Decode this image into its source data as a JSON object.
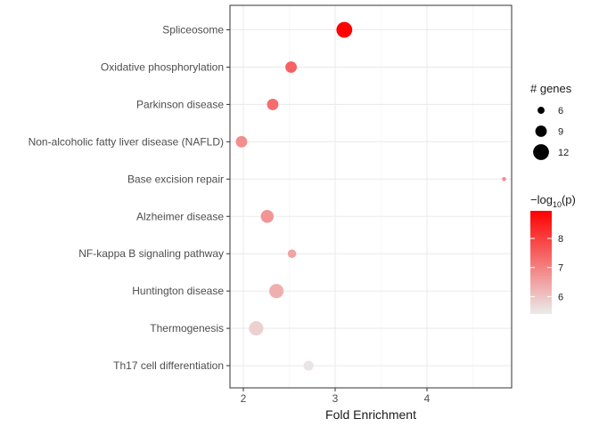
{
  "chart_data": {
    "type": "scatter",
    "title": "",
    "xlabel": "Fold Enrichment",
    "ylabel": "",
    "xlim": [
      1.9,
      4.95
    ],
    "x_ticks": [
      "2",
      "3",
      "4"
    ],
    "x_tick_values": [
      2,
      3,
      4
    ],
    "grid": true,
    "categories": [
      "Spliceosome",
      "Oxidative phosphorylation",
      "Parkinson disease",
      "Non-alcoholic fatty liver disease (NAFLD)",
      "Base excision repair",
      "Alzheimer disease",
      "NF-kappa B signaling pathway",
      "Huntington disease",
      "Thermogenesis",
      "Th17 cell differentiation"
    ],
    "points": [
      {
        "term": "Spliceosome",
        "fold_enrichment": 3.1,
        "genes": 12,
        "neg_log10_p": 8.9
      },
      {
        "term": "Oxidative phosphorylation",
        "fold_enrichment": 2.52,
        "genes": 9,
        "neg_log10_p": 7.5
      },
      {
        "term": "Parkinson disease",
        "fold_enrichment": 2.32,
        "genes": 9,
        "neg_log10_p": 7.3
      },
      {
        "term": "Non-alcoholic fatty liver disease (NAFLD)",
        "fold_enrichment": 1.98,
        "genes": 9,
        "neg_log10_p": 6.8
      },
      {
        "term": "Base excision repair",
        "fold_enrichment": 4.84,
        "genes": 4,
        "neg_log10_p": 6.8
      },
      {
        "term": "Alzheimer disease",
        "fold_enrichment": 2.26,
        "genes": 10,
        "neg_log10_p": 6.7
      },
      {
        "term": "NF-kappa B signaling pathway",
        "fold_enrichment": 2.53,
        "genes": 7,
        "neg_log10_p": 6.5
      },
      {
        "term": "Huntington disease",
        "fold_enrichment": 2.36,
        "genes": 11,
        "neg_log10_p": 6.3
      },
      {
        "term": "Thermogenesis",
        "fold_enrichment": 2.14,
        "genes": 11,
        "neg_log10_p": 5.8
      },
      {
        "term": "Th17 cell differentiation",
        "fold_enrichment": 2.71,
        "genes": 8,
        "neg_log10_p": 5.5
      }
    ],
    "size_legend": {
      "title": "# genes",
      "values": [
        6,
        9,
        12
      ],
      "labels": [
        "6",
        "9",
        "12"
      ]
    },
    "color_legend": {
      "title_prefix": "−log",
      "title_subscript": "10",
      "title_suffix": "(p)",
      "min": 5.4,
      "max": 8.95,
      "ticks": [
        6,
        7,
        8
      ],
      "tick_labels": [
        "6",
        "7",
        "8"
      ],
      "low_color": "#ebebeb",
      "high_color": "#ff0000"
    },
    "legend_position": "right",
    "point_color": "#000000"
  }
}
